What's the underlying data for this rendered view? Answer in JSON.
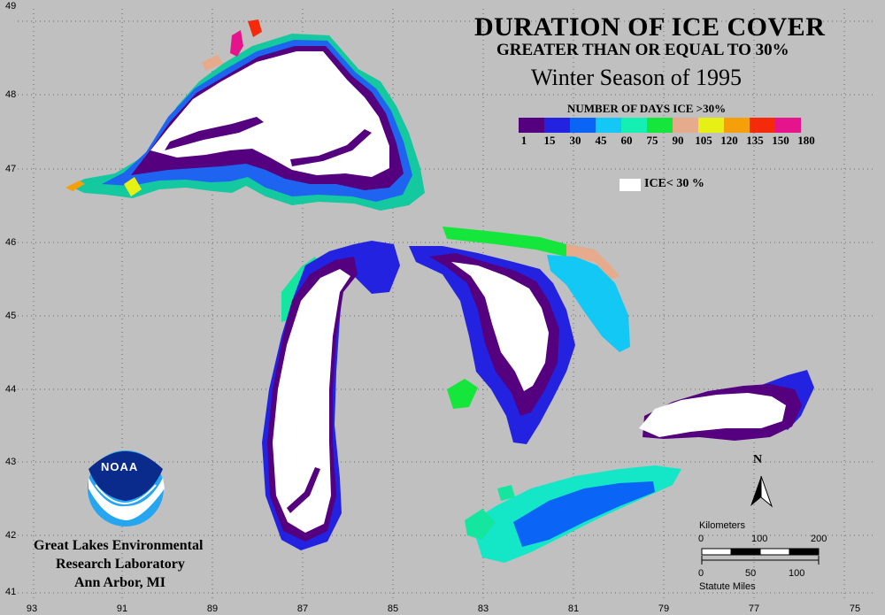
{
  "title": {
    "main": "DURATION OF ICE COVER",
    "sub": "GREATER THAN OR EQUAL TO 30%",
    "season": "Winter Season of 1995"
  },
  "legend": {
    "title": "NUMBER OF DAYS ICE >30%",
    "colors": [
      "#55007f",
      "#2222e0",
      "#0a64f5",
      "#14c8f5",
      "#14f0b4",
      "#14e63c",
      "#e6aa8c",
      "#e6f014",
      "#f5a00a",
      "#f52a0a",
      "#e6148c"
    ],
    "labels": [
      "1",
      "15",
      "30",
      "45",
      "60",
      "75",
      "90",
      "105",
      "120",
      "135",
      "150",
      "180"
    ],
    "ice_label": "ICE< 30 %"
  },
  "axes": {
    "lat_labels": [
      "49",
      "48",
      "47",
      "46",
      "45",
      "44",
      "43",
      "42",
      "41"
    ],
    "lon_labels": [
      "93",
      "91",
      "89",
      "87",
      "85",
      "83",
      "81",
      "79",
      "77",
      "75"
    ]
  },
  "scale_bar": {
    "km_title": "Kilometers",
    "km_ticks": [
      "0",
      "100",
      "200"
    ],
    "mi_ticks": [
      "0",
      "50",
      "100"
    ],
    "mi_title": "Statute Miles"
  },
  "north": "N",
  "logo": {
    "text": "NOAA"
  },
  "lab": {
    "line1": "Great Lakes Environmental",
    "line2": "Research Laboratory",
    "line3": "Ann Arbor, MI"
  }
}
